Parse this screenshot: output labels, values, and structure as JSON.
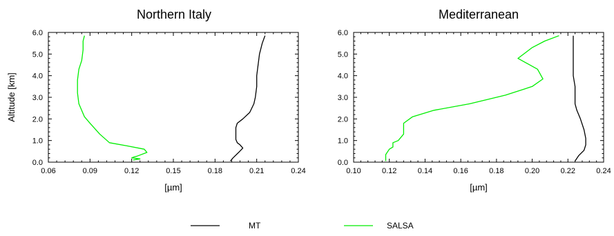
{
  "chart_data": [
    {
      "type": "line",
      "title": "Northern Italy",
      "xlabel": "[µm]",
      "ylabel": "Altitude [km]",
      "xlim": [
        0.06,
        0.24
      ],
      "ylim": [
        0.0,
        6.0
      ],
      "xticks": [
        0.06,
        0.09,
        0.12,
        0.15,
        0.18,
        0.21,
        0.24
      ],
      "xtick_labels": [
        "0.06",
        "0.09",
        "0.12",
        "0.15",
        "0.18",
        "0.21",
        "0.24"
      ],
      "yticks": [
        0,
        1,
        2,
        3,
        4,
        5,
        6
      ],
      "ytick_labels": [
        "0.0",
        "1.0",
        "2.0",
        "3.0",
        "4.0",
        "5.0",
        "6.0"
      ],
      "series": [
        {
          "name": "MT",
          "color": "#000000",
          "points": [
            [
              0.191,
              0.05
            ],
            [
              0.193,
              0.2
            ],
            [
              0.197,
              0.45
            ],
            [
              0.2,
              0.65
            ],
            [
              0.198,
              0.8
            ],
            [
              0.196,
              0.9
            ],
            [
              0.195,
              1.05
            ],
            [
              0.195,
              1.3
            ],
            [
              0.195,
              1.6
            ],
            [
              0.196,
              1.8
            ],
            [
              0.2,
              2.0
            ],
            [
              0.205,
              2.3
            ],
            [
              0.208,
              2.7
            ],
            [
              0.209,
              3.0
            ],
            [
              0.21,
              3.5
            ],
            [
              0.21,
              4.0
            ],
            [
              0.211,
              4.5
            ],
            [
              0.212,
              5.0
            ],
            [
              0.214,
              5.5
            ],
            [
              0.216,
              5.85
            ]
          ]
        },
        {
          "name": "SALSA",
          "color": "#00ee00",
          "points": [
            [
              0.121,
              0.1
            ],
            [
              0.126,
              0.15
            ],
            [
              0.12,
              0.2
            ],
            [
              0.122,
              0.25
            ],
            [
              0.124,
              0.28
            ],
            [
              0.131,
              0.45
            ],
            [
              0.129,
              0.6
            ],
            [
              0.117,
              0.75
            ],
            [
              0.104,
              0.9
            ],
            [
              0.097,
              1.3
            ],
            [
              0.09,
              1.8
            ],
            [
              0.086,
              2.1
            ],
            [
              0.082,
              2.7
            ],
            [
              0.081,
              3.2
            ],
            [
              0.081,
              3.8
            ],
            [
              0.082,
              4.3
            ],
            [
              0.084,
              4.7
            ],
            [
              0.085,
              5.2
            ],
            [
              0.085,
              5.6
            ],
            [
              0.086,
              5.85
            ]
          ]
        }
      ]
    },
    {
      "type": "line",
      "title": "Mediterranean",
      "xlabel": "[µm]",
      "ylabel": "",
      "xlim": [
        0.1,
        0.24
      ],
      "ylim": [
        0.0,
        6.0
      ],
      "xticks": [
        0.1,
        0.12,
        0.14,
        0.16,
        0.18,
        0.2,
        0.22,
        0.24
      ],
      "xtick_labels": [
        "0.10",
        "0.12",
        "0.14",
        "0.16",
        "0.18",
        "0.20",
        "0.22",
        "0.24"
      ],
      "yticks": [
        0,
        1,
        2,
        3,
        4,
        5,
        6
      ],
      "ytick_labels": [
        "0.0",
        "1.0",
        "2.0",
        "3.0",
        "4.0",
        "5.0",
        "6.0"
      ],
      "series": [
        {
          "name": "MT",
          "color": "#000000",
          "points": [
            [
              0.224,
              0.05
            ],
            [
              0.226,
              0.3
            ],
            [
              0.229,
              0.55
            ],
            [
              0.23,
              0.8
            ],
            [
              0.23,
              1.1
            ],
            [
              0.229,
              1.5
            ],
            [
              0.227,
              2.0
            ],
            [
              0.225,
              2.4
            ],
            [
              0.224,
              2.7
            ],
            [
              0.224,
              3.0
            ],
            [
              0.224,
              3.5
            ],
            [
              0.223,
              4.0
            ],
            [
              0.223,
              5.0
            ],
            [
              0.223,
              5.85
            ]
          ]
        },
        {
          "name": "SALSA",
          "color": "#00ee00",
          "points": [
            [
              0.118,
              0.05
            ],
            [
              0.118,
              0.35
            ],
            [
              0.12,
              0.6
            ],
            [
              0.122,
              0.7
            ],
            [
              0.122,
              0.9
            ],
            [
              0.125,
              1.0
            ],
            [
              0.128,
              1.3
            ],
            [
              0.128,
              1.8
            ],
            [
              0.133,
              2.1
            ],
            [
              0.145,
              2.4
            ],
            [
              0.165,
              2.7
            ],
            [
              0.185,
              3.1
            ],
            [
              0.2,
              3.5
            ],
            [
              0.206,
              3.85
            ],
            [
              0.203,
              4.3
            ],
            [
              0.192,
              4.8
            ],
            [
              0.2,
              5.3
            ],
            [
              0.207,
              5.6
            ],
            [
              0.215,
              5.85
            ]
          ]
        }
      ]
    }
  ],
  "legend": {
    "placement": "bottom-center",
    "items": [
      {
        "label": "MT",
        "color": "#000000"
      },
      {
        "label": "SALSA",
        "color": "#00ee00"
      }
    ]
  }
}
